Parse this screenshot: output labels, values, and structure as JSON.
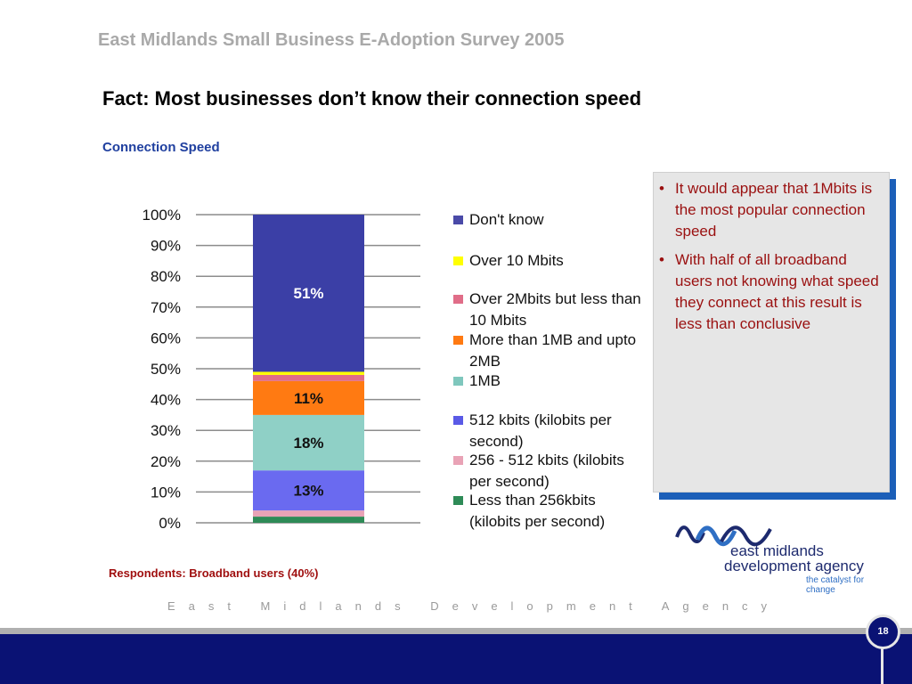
{
  "header": {
    "survey_title": "East Midlands Small Business E-Adoption Survey 2005",
    "fact_title": "Fact: Most businesses don’t know their connection speed",
    "chart_heading": "Connection Speed"
  },
  "chart_data": {
    "type": "bar",
    "stacked": true,
    "percent_stacked": true,
    "categories": [
      ""
    ],
    "ylim": [
      0,
      100
    ],
    "yticks": [
      "0%",
      "10%",
      "20%",
      "30%",
      "40%",
      "50%",
      "60%",
      "70%",
      "80%",
      "90%",
      "100%"
    ],
    "grid": true,
    "legend_position": "right",
    "series": [
      {
        "name": "Less than 256kbits (kilobits per second)",
        "values": [
          2
        ],
        "color": "#2e8b57",
        "label": ""
      },
      {
        "name": "256 - 512 kbits (kilobits per second)",
        "values": [
          2
        ],
        "color": "#e9a3b6",
        "label": ""
      },
      {
        "name": "512 kbits (kilobits per second)",
        "values": [
          13
        ],
        "color": "#6a6af0",
        "label": "13%"
      },
      {
        "name": "1MB",
        "values": [
          18
        ],
        "color": "#8fd0c6",
        "label": "18%"
      },
      {
        "name": "More than 1MB and upto 2MB",
        "values": [
          11
        ],
        "color": "#ff7a12",
        "label": "11%"
      },
      {
        "name": "Over 2Mbits but less than 10 Mbits",
        "values": [
          2
        ],
        "color": "#e06d88",
        "label": ""
      },
      {
        "name": "Over 10 Mbits",
        "values": [
          1
        ],
        "color": "#ffff00",
        "label": ""
      },
      {
        "name": "Don't know",
        "values": [
          51
        ],
        "color": "#3b3fa6",
        "label": "51%"
      }
    ]
  },
  "legend": [
    {
      "label": "Don't know",
      "color": "#4a4aa8"
    },
    {
      "label": "Over 10 Mbits",
      "color": "#ffff00"
    },
    {
      "label": "Over 2Mbits but less than 10 Mbits",
      "color": "#e06d88"
    },
    {
      "label": "More than 1MB and upto 2MB",
      "color": "#ff7a12"
    },
    {
      "label": "1MB",
      "color": "#7fc7bd"
    },
    {
      "label": "512 kbits (kilobits per second)",
      "color": "#5a5ae6"
    },
    {
      "label": "256 - 512 kbits (kilobits per second)",
      "color": "#e9a3b6"
    },
    {
      "label": "Less than 256kbits (kilobits per second)",
      "color": "#2e8b57"
    }
  ],
  "notes": [
    "It would appear that 1Mbits is the most popular connection speed",
    "With half of all broadband users not knowing what speed they connect at this result is less than conclusive"
  ],
  "respondents": "Respondents: Broadband users (40%)",
  "logo": {
    "line1": "east midlands",
    "line2": "development agency",
    "tagline": "the catalyst for change"
  },
  "footer": {
    "agency": "East Midlands Development Agency",
    "page_number": "18"
  }
}
